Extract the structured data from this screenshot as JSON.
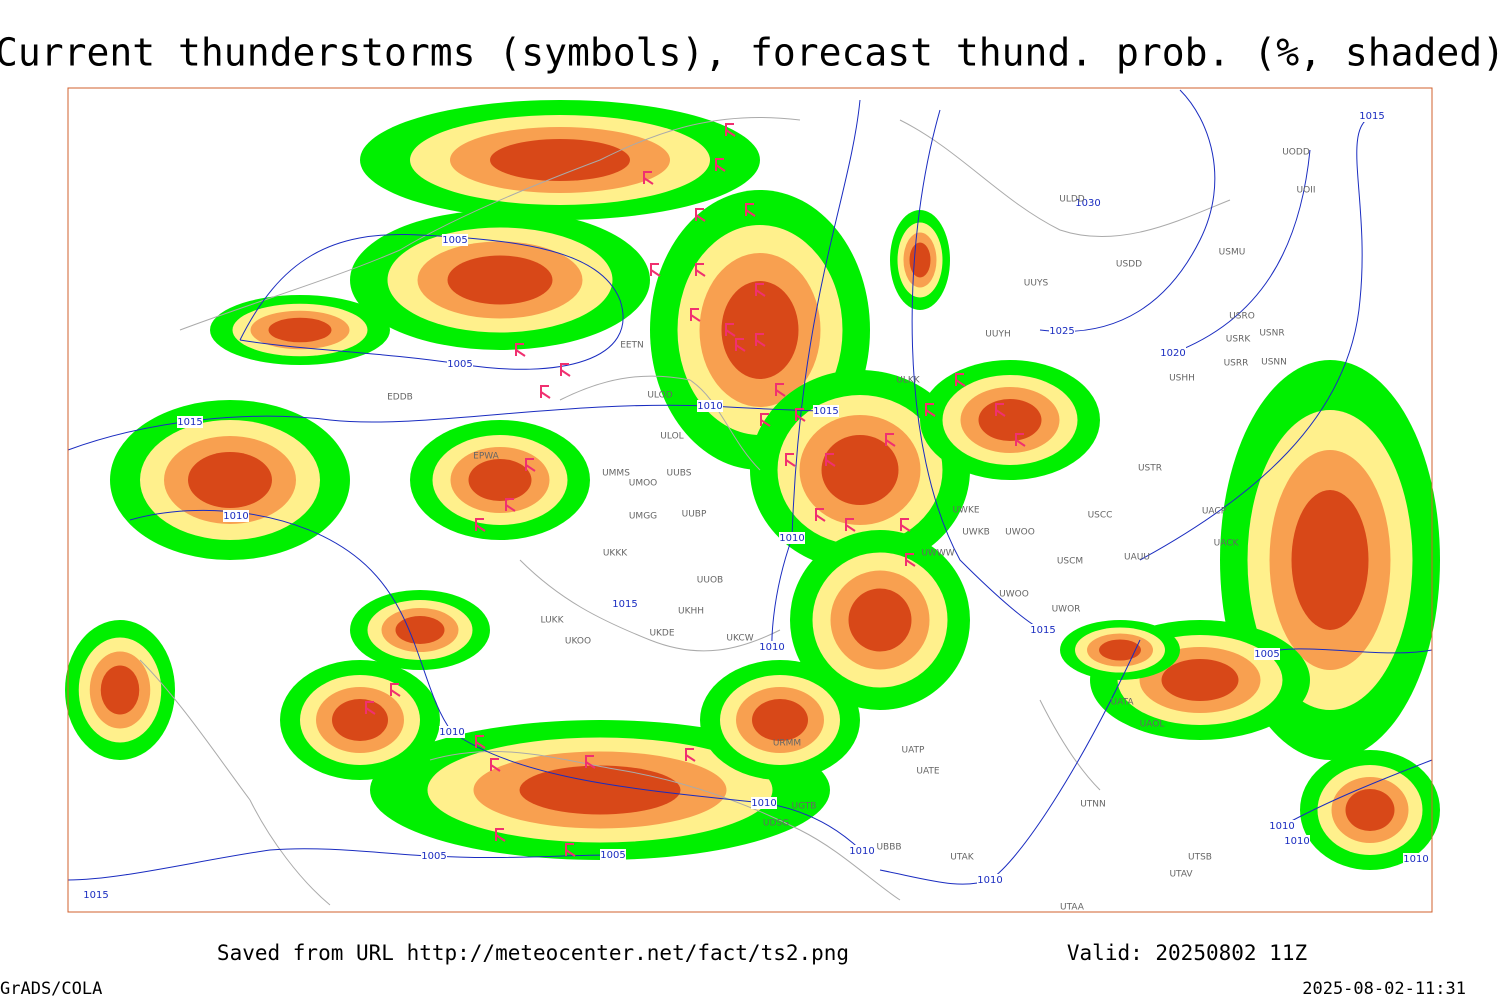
{
  "header": {
    "title": "Current thunderstorms (symbols), forecast thund. prob. (%, shaded)"
  },
  "footer": {
    "source": "Saved from URL http://meteocenter.net/fact/ts2.png",
    "valid": "Valid: 20250802 11Z",
    "software": "GrADS/COLA",
    "timestamp": "2025-08-02-11:31"
  },
  "isobar_labels": [
    "1005",
    "1005",
    "1010",
    "1015",
    "1010",
    "1015",
    "1010",
    "1015",
    "1010",
    "1010",
    "1010",
    "1005",
    "1005",
    "1010",
    "1010",
    "1015",
    "1015",
    "1020",
    "1025",
    "1030",
    "1015",
    "1005",
    "1010",
    "1010",
    "1010"
  ],
  "stations": [
    "EETN",
    "ULOD",
    "ULOL",
    "UMMS",
    "UMOO",
    "UUBS",
    "UMGG",
    "UUBP",
    "UKKK",
    "UUOB",
    "LUKK",
    "UKOO",
    "UKDE",
    "UKHH",
    "UKCW",
    "ULKK",
    "UWKE",
    "UWKB",
    "UWOO",
    "UWWW",
    "UWOO",
    "UWOR",
    "USCM",
    "UAUU",
    "USCC",
    "USTR",
    "USHH",
    "USRR",
    "USNN",
    "USNR",
    "USRK",
    "USRO",
    "USMU",
    "USDD",
    "UUYS",
    "UUYH",
    "ULDD",
    "UOII",
    "UODD",
    "UACP",
    "UACK",
    "UATA",
    "UAOL",
    "UATP",
    "UATE",
    "UTNN",
    "UTAK",
    "UTAV",
    "UTSB",
    "UTAA",
    "EPWA",
    "EDDB",
    "UBBB",
    "UGTB",
    "UDSG",
    "URMM"
  ]
}
